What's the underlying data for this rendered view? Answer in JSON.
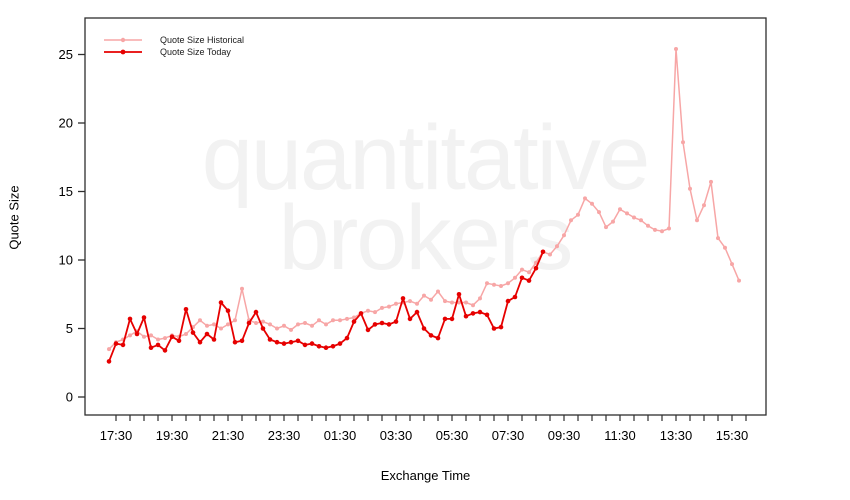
{
  "chart_data": {
    "type": "line",
    "title": "",
    "xlabel": "Exchange Time",
    "ylabel": "Quote Size",
    "legend_position": "top-left",
    "grid": false,
    "watermark": [
      "quantitative",
      "brokers"
    ],
    "axis_color": "#2e2e2e",
    "x_axis": {
      "first_tick": "17:30",
      "last_tick": "16:00",
      "tick_interval_minutes": 30,
      "labeled_ticks": [
        "17:30",
        "19:30",
        "21:30",
        "23:30",
        "01:30",
        "03:30",
        "05:30",
        "07:30",
        "09:30",
        "11:30",
        "13:30",
        "15:30"
      ]
    },
    "y_axis": {
      "ticks": [
        0,
        5,
        10,
        15,
        20,
        25
      ],
      "range": [
        0,
        26.5
      ]
    },
    "series": [
      {
        "name": "Quote Size Historical",
        "color": "#F7A6A6",
        "start": "17:15",
        "interval_minutes": 15,
        "values": [
          3.5,
          4.0,
          4.2,
          4.5,
          4.8,
          4.4,
          4.5,
          4.2,
          4.3,
          4.5,
          4.4,
          4.6,
          5.1,
          5.6,
          5.2,
          5.3,
          5.0,
          5.3,
          5.6,
          7.9,
          5.6,
          5.4,
          5.5,
          5.3,
          5.0,
          5.2,
          4.9,
          5.3,
          5.4,
          5.2,
          5.6,
          5.3,
          5.6,
          5.6,
          5.7,
          5.8,
          6.1,
          6.3,
          6.2,
          6.5,
          6.6,
          6.8,
          6.9,
          7.0,
          6.8,
          7.4,
          7.1,
          7.7,
          7.0,
          6.9,
          6.9,
          6.9,
          6.7,
          7.2,
          8.3,
          8.2,
          8.1,
          8.3,
          8.7,
          9.3,
          9.1,
          9.8,
          10.6,
          10.4,
          11.0,
          11.8,
          12.9,
          13.3,
          14.5,
          14.1,
          13.5,
          12.4,
          12.8,
          13.7,
          13.4,
          13.1,
          12.9,
          12.5,
          12.2,
          12.1,
          12.3,
          25.4,
          18.6,
          15.2,
          12.9,
          14.0,
          15.7,
          11.6,
          10.9,
          9.7,
          8.5
        ]
      },
      {
        "name": "Quote Size Today",
        "color": "#E60000",
        "start": "17:15",
        "interval_minutes": 15,
        "values": [
          2.6,
          3.9,
          3.8,
          5.7,
          4.6,
          5.8,
          3.6,
          3.8,
          3.4,
          4.4,
          4.1,
          6.4,
          4.7,
          4.0,
          4.6,
          4.2,
          6.9,
          6.3,
          4.0,
          4.1,
          5.4,
          6.2,
          5.0,
          4.2,
          4.0,
          3.9,
          4.0,
          4.1,
          3.8,
          3.9,
          3.7,
          3.6,
          3.7,
          3.9,
          4.3,
          5.5,
          6.1,
          4.9,
          5.3,
          5.4,
          5.3,
          5.5,
          7.2,
          5.7,
          6.2,
          5.0,
          4.5,
          4.3,
          5.7,
          5.7,
          7.5,
          5.9,
          6.1,
          6.2,
          6.0,
          5.0,
          5.1,
          7.0,
          7.3,
          8.7,
          8.5,
          9.4,
          10.6
        ]
      }
    ]
  }
}
